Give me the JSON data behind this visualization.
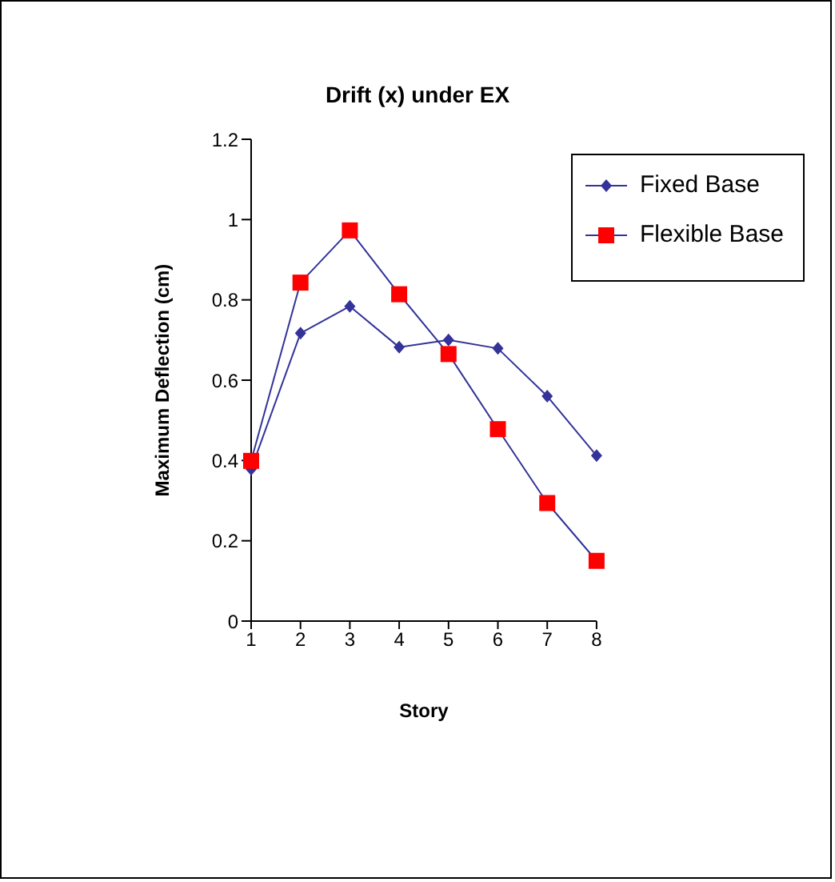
{
  "chart_data": {
    "type": "line",
    "title": "Drift (x) under EX",
    "xlabel": "Story",
    "ylabel": "Maximum Deflection (cm)",
    "categories": [
      "1",
      "2",
      "3",
      "4",
      "5",
      "6",
      "7",
      "8"
    ],
    "series": [
      {
        "name": "Fixed Base",
        "color": "#333399",
        "marker": "diamond",
        "values": [
          0.378,
          0.717,
          0.784,
          0.682,
          0.7,
          0.679,
          0.56,
          0.412
        ]
      },
      {
        "name": "Flexible Base",
        "color": "#ff0000",
        "marker": "square",
        "values": [
          0.399,
          0.843,
          0.973,
          0.814,
          0.665,
          0.478,
          0.294,
          0.15
        ]
      }
    ],
    "ylim": [
      0,
      1.2
    ],
    "yticks": [
      0,
      0.2,
      0.4,
      0.6,
      0.8,
      1,
      1.2
    ],
    "grid": false,
    "legend": "top right"
  }
}
